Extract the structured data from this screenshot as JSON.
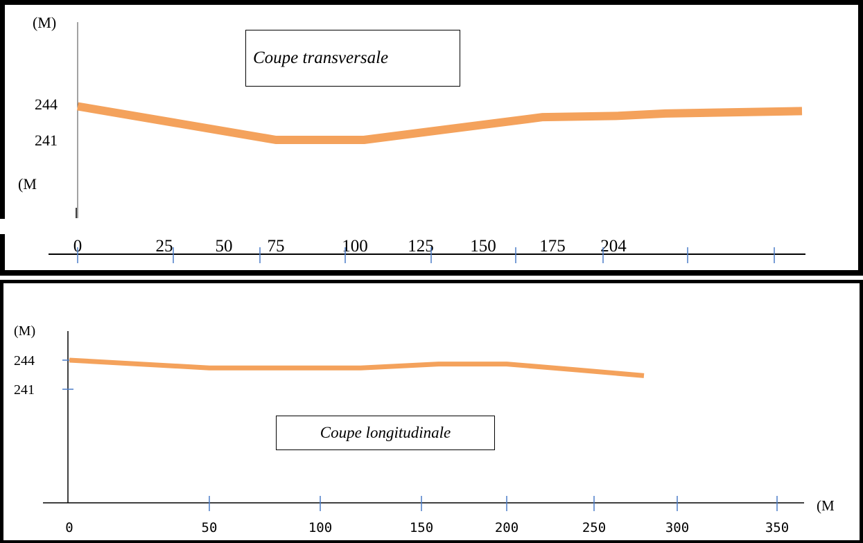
{
  "chart_data": [
    {
      "type": "line",
      "title": "Coupe transversale",
      "ylabel_top": "(M)",
      "ylabel_bottom": "(M",
      "y_ticks": [
        {
          "label": "244",
          "value": 244
        },
        {
          "label": "241",
          "value": 241
        }
      ],
      "x_ticks": [
        {
          "label": "0",
          "value": 0
        },
        {
          "label": "25",
          "value": 25
        },
        {
          "label": "50",
          "value": 50
        },
        {
          "label": "75",
          "value": 75
        },
        {
          "label": "100",
          "value": 100
        },
        {
          "label": "125",
          "value": 125
        },
        {
          "label": "150",
          "value": 150
        },
        {
          "label": "175",
          "value": 175
        },
        {
          "label": "204",
          "value": 204
        }
      ],
      "series": [
        {
          "color": "#f4a25c",
          "points": [
            [
              0,
              243.8
            ],
            [
              75,
              241.0
            ],
            [
              100,
              241.0
            ],
            [
              175,
              242.9
            ],
            [
              204,
              243.0
            ],
            [
              225,
              243.2
            ],
            [
              260,
              243.4
            ]
          ]
        }
      ]
    },
    {
      "type": "line",
      "title": "Coupe longitudinale",
      "ylabel": "(M)",
      "xlabel": "(M",
      "y_ticks": [
        {
          "label": "244",
          "value": 244
        },
        {
          "label": "241",
          "value": 241
        }
      ],
      "x_ticks": [
        {
          "label": "0",
          "value": 0
        },
        {
          "label": "50",
          "value": 50
        },
        {
          "label": "100",
          "value": 100
        },
        {
          "label": "150",
          "value": 150
        },
        {
          "label": "200",
          "value": 200
        },
        {
          "label": "250",
          "value": 250
        },
        {
          "label": "300",
          "value": 300
        },
        {
          "label": "350",
          "value": 350
        }
      ],
      "series": [
        {
          "color": "#f4a25c",
          "points": [
            [
              0,
              244.0
            ],
            [
              50,
              243.2
            ],
            [
              90,
              243.2
            ],
            [
              120,
              243.2
            ],
            [
              160,
              243.6
            ],
            [
              200,
              243.6
            ],
            [
              240,
              243.0
            ],
            [
              280,
              242.4
            ]
          ]
        }
      ]
    }
  ]
}
